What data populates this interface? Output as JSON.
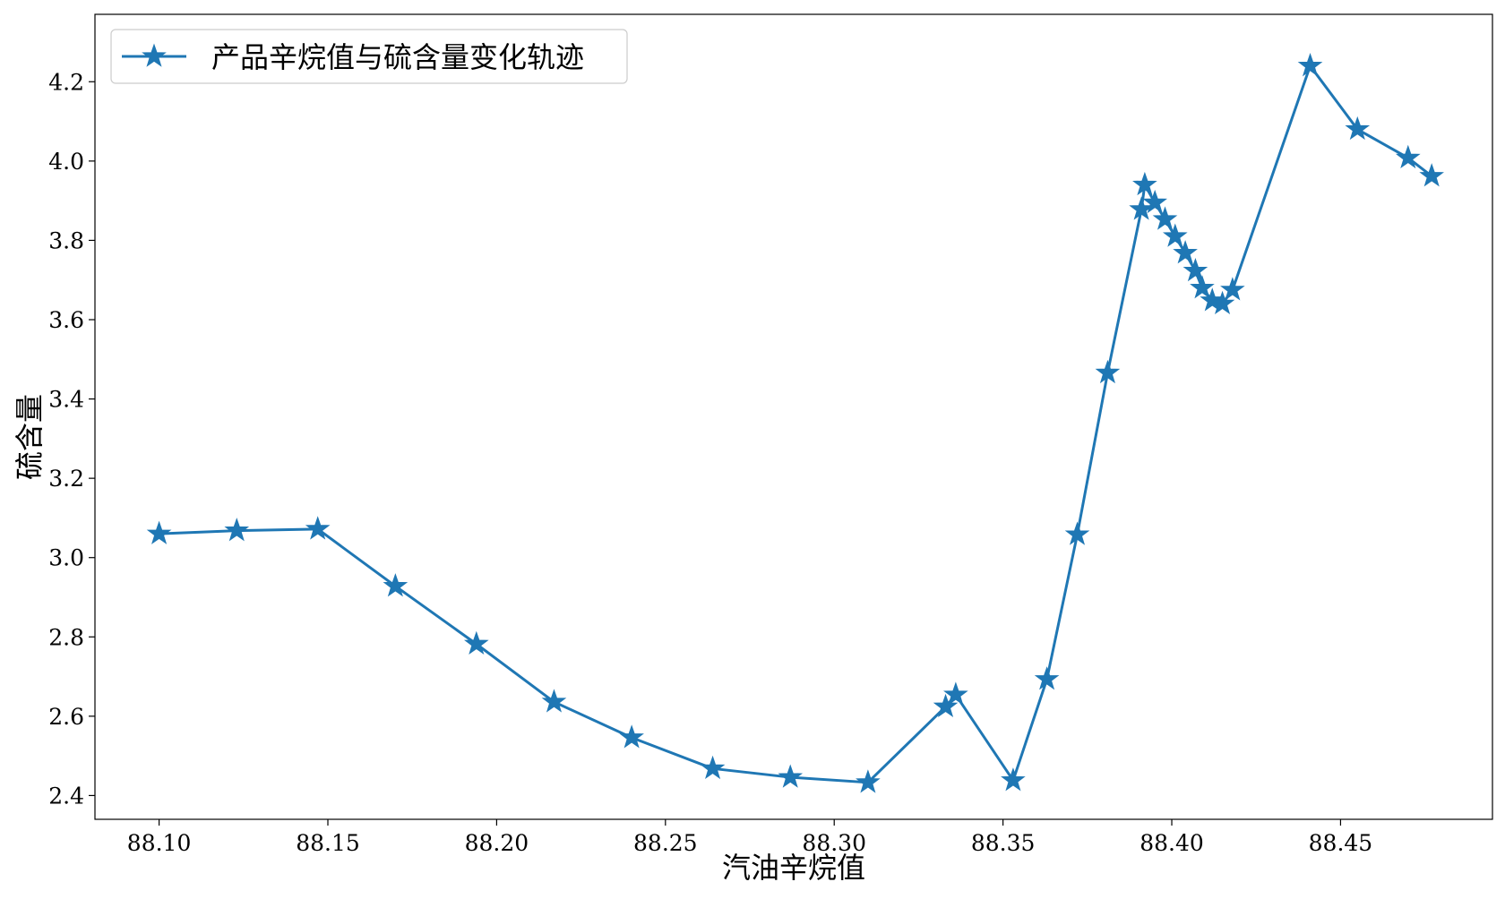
{
  "chart_data": {
    "type": "line",
    "title": "",
    "xlabel": "汽油辛烷值",
    "ylabel": "硫含量",
    "xlim": [
      88.081,
      88.495
    ],
    "ylim": [
      2.34,
      4.37
    ],
    "xticks": [
      88.1,
      88.15,
      88.2,
      88.25,
      88.3,
      88.35,
      88.4,
      88.45
    ],
    "xtick_labels": [
      "88.10",
      "88.15",
      "88.20",
      "88.25",
      "88.30",
      "88.35",
      "88.40",
      "88.45"
    ],
    "yticks": [
      2.4,
      2.6,
      2.8,
      3.0,
      3.2,
      3.4,
      3.6,
      3.8,
      4.0,
      4.2
    ],
    "ytick_labels": [
      "2.4",
      "2.6",
      "2.8",
      "3.0",
      "3.2",
      "3.4",
      "3.6",
      "3.8",
      "4.0",
      "4.2"
    ],
    "grid": false,
    "legend_position": "top-left",
    "color": "#1f77b4",
    "marker": "star",
    "series": [
      {
        "name": "产品辛烷值与硫含量变化轨迹",
        "x": [
          88.1,
          88.123,
          88.147,
          88.17,
          88.194,
          88.217,
          88.24,
          88.264,
          88.287,
          88.31,
          88.333,
          88.336,
          88.353,
          88.363,
          88.372,
          88.381,
          88.391,
          88.392,
          88.395,
          88.398,
          88.401,
          88.404,
          88.407,
          88.409,
          88.412,
          88.415,
          88.418,
          88.441,
          88.455,
          88.47,
          88.477
        ],
        "y": [
          3.06,
          3.068,
          3.072,
          2.928,
          2.782,
          2.636,
          2.546,
          2.468,
          2.446,
          2.433,
          2.624,
          2.654,
          2.438,
          2.693,
          3.058,
          3.466,
          3.878,
          3.94,
          3.895,
          3.853,
          3.81,
          3.768,
          3.723,
          3.68,
          3.648,
          3.64,
          3.675,
          4.24,
          4.08,
          4.008,
          3.962
        ]
      }
    ]
  }
}
